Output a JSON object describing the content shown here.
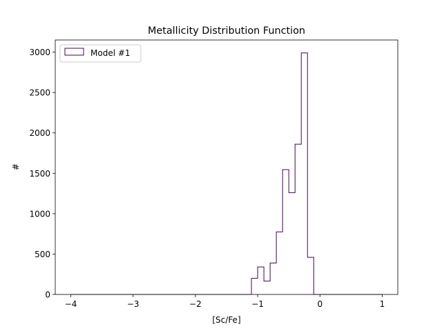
{
  "chart_data": {
    "type": "histogram",
    "title": "Metallicity Distribution Function",
    "xlabel": "[Sc/Fe]",
    "ylabel": "#",
    "xlim": [
      -4.25,
      1.25
    ],
    "ylim": [
      0,
      3150
    ],
    "xticks": [
      -4,
      -3,
      -2,
      -1,
      0,
      1
    ],
    "xtick_labels": [
      "−4",
      "−3",
      "−2",
      "−1",
      "0",
      "1"
    ],
    "yticks": [
      0,
      500,
      1000,
      1500,
      2000,
      2500,
      3000
    ],
    "ytick_labels": [
      "0",
      "500",
      "1000",
      "1500",
      "2000",
      "2500",
      "3000"
    ],
    "grid": false,
    "legend": {
      "position": "top-left",
      "entries": [
        "Model #1"
      ]
    },
    "series": [
      {
        "name": "Model #1",
        "color": "#440154",
        "histtype": "step",
        "bin_edges": [
          -4.0,
          -3.9,
          -3.8,
          -3.7,
          -3.6,
          -3.5,
          -3.4,
          -3.3,
          -3.2,
          -3.1,
          -3.0,
          -2.9,
          -2.8,
          -2.7,
          -2.6,
          -2.5,
          -2.4,
          -2.3,
          -2.2,
          -2.1,
          -2.0,
          -1.9,
          -1.8,
          -1.7,
          -1.6,
          -1.5,
          -1.4,
          -1.3,
          -1.2,
          -1.1,
          -1.0,
          -0.9,
          -0.8,
          -0.7,
          -0.6,
          -0.5,
          -0.4,
          -0.3,
          -0.2,
          -0.1,
          0.0,
          0.1,
          0.2,
          0.3,
          0.4,
          0.5,
          0.6,
          0.7,
          0.8,
          0.9,
          1.0
        ],
        "counts": [
          0,
          0,
          0,
          0,
          0,
          0,
          0,
          0,
          0,
          0,
          0,
          0,
          0,
          0,
          0,
          0,
          0,
          0,
          0,
          0,
          0,
          0,
          0,
          0,
          0,
          0,
          0,
          0,
          0,
          200,
          340,
          165,
          390,
          775,
          1545,
          1260,
          1860,
          2990,
          460,
          0,
          0,
          0,
          0,
          0,
          0,
          0,
          0,
          0,
          0,
          0
        ]
      }
    ]
  }
}
